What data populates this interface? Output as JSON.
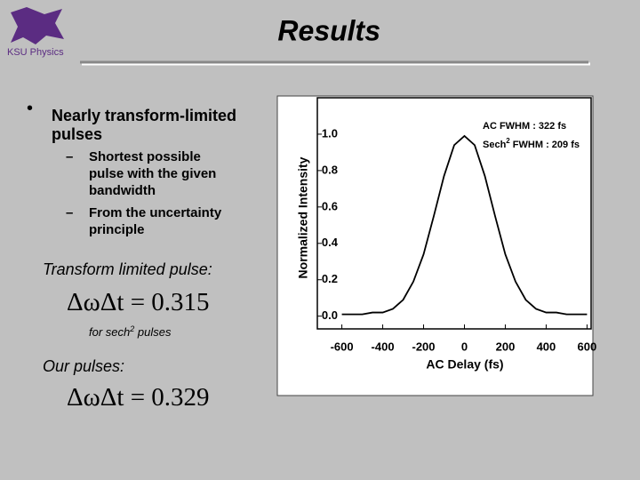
{
  "header": {
    "logo_text": "KSU Physics",
    "title": "Results"
  },
  "bullets": [
    {
      "lines": [
        "Nearly transform-limited",
        "pulses"
      ],
      "subbullets": [
        {
          "lines": [
            "Shortest possible",
            "pulse with the given",
            "bandwidth"
          ]
        },
        {
          "lines": [
            "From the uncertainty",
            "principle"
          ]
        }
      ]
    }
  ],
  "transform_label": "Transform limited pulse:",
  "equation_1": "ΔωΔt = 0.315",
  "note": {
    "pre": "for sech",
    "sup": "2",
    "post": " pulses"
  },
  "ours_label": "Our pulses:",
  "equation_2": "ΔωΔt = 0.329",
  "chart_data": {
    "type": "line",
    "xlabel": "AC Delay (fs)",
    "ylabel": "Normalized Intensity",
    "annotations": [
      {
        "text": "AC FWHM : 322 fs"
      },
      {
        "pre": "Sech",
        "sup": "2",
        "post": " FWHM : 209 fs"
      }
    ],
    "x": [
      -600,
      -550,
      -500,
      -450,
      -400,
      -350,
      -300,
      -250,
      -200,
      -150,
      -100,
      -50,
      0,
      50,
      100,
      150,
      200,
      250,
      300,
      350,
      400,
      450,
      500,
      550,
      600
    ],
    "series": [
      {
        "color": "#000000",
        "values": [
          0.01,
          0.01,
          0.01,
          0.02,
          0.02,
          0.04,
          0.09,
          0.19,
          0.34,
          0.55,
          0.77,
          0.94,
          0.99,
          0.94,
          0.77,
          0.55,
          0.34,
          0.19,
          0.09,
          0.04,
          0.02,
          0.02,
          0.01,
          0.01,
          0.01
        ]
      }
    ],
    "xlim": [
      -720,
      620
    ],
    "ylim": [
      -0.07,
      1.2
    ],
    "xticks": [
      -600,
      -400,
      -200,
      0,
      200,
      400,
      600
    ],
    "yticks": [
      {
        "value": 0,
        "label": "0.0"
      },
      0.2,
      0.4,
      0.6,
      0.8,
      {
        "value": 1,
        "label": "1.0"
      }
    ]
  }
}
